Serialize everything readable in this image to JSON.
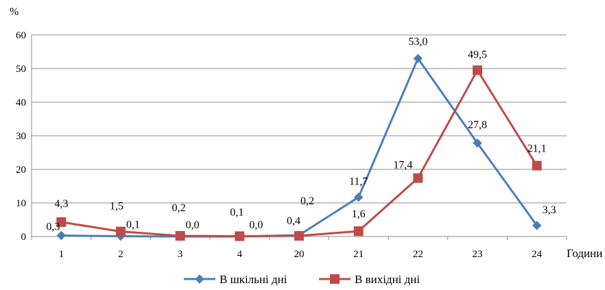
{
  "chart_data": {
    "type": "line",
    "title": "",
    "xlabel": "Години",
    "ylabel": "%",
    "ylim": [
      0,
      60
    ],
    "yticks": [
      0,
      10,
      20,
      30,
      40,
      50,
      60
    ],
    "grid": true,
    "legend": "bottom",
    "categories": [
      "1",
      "2",
      "3",
      "4",
      "20",
      "21",
      "22",
      "23",
      "24"
    ],
    "series": [
      {
        "name": "В шкільні дні",
        "color": "#4a7ebb",
        "marker": "diamond",
        "values": [
          0.3,
          0.1,
          0.0,
          0.0,
          0.4,
          11.7,
          53.0,
          27.8,
          3.3
        ],
        "labels": [
          "0,3",
          "0,1",
          "0,0",
          "0,0",
          "0,4",
          "11,7",
          "53,0",
          "27,8",
          "3,3"
        ]
      },
      {
        "name": "В вихідні дні",
        "color": "#be4b48",
        "marker": "square",
        "values": [
          4.3,
          1.5,
          0.2,
          0.1,
          0.2,
          1.6,
          17.4,
          49.5,
          21.1
        ],
        "labels": [
          "4,3",
          "1,5",
          "0,2",
          "0,1",
          "0,2",
          "1,6",
          "17,4",
          "49,5",
          "21,1"
        ]
      }
    ]
  }
}
